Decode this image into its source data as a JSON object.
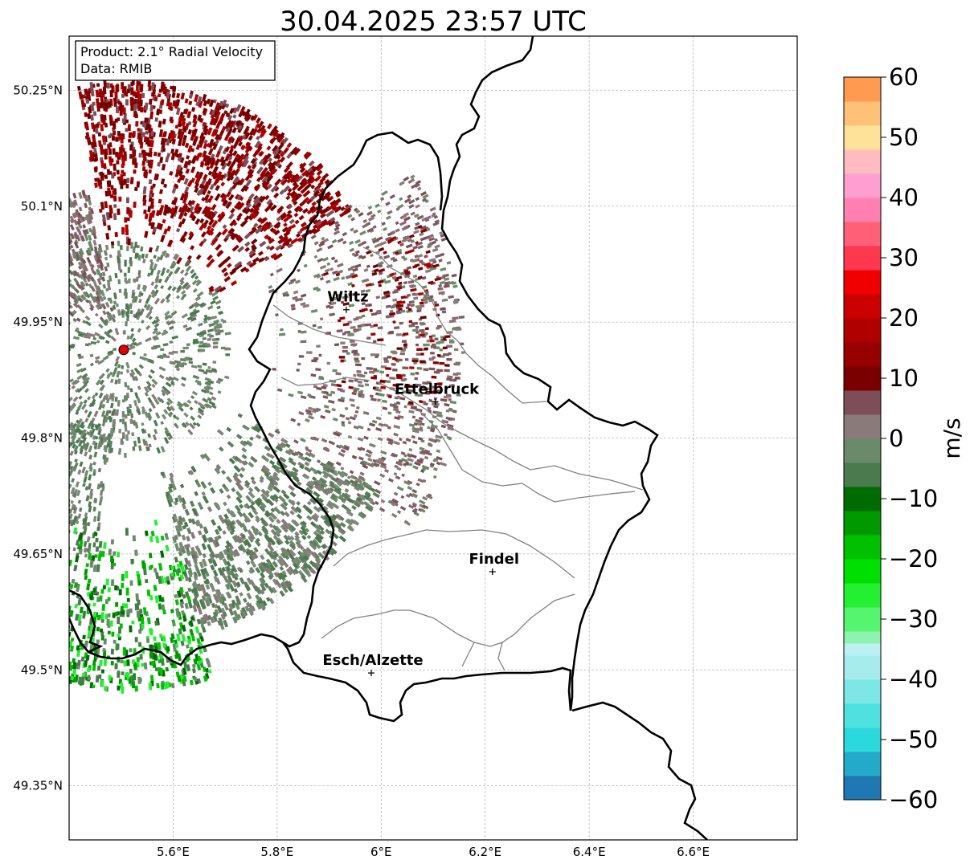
{
  "title": "30.04.2025 23:57 UTC",
  "info_box": {
    "product": "Product: 2.1° Radial Velocity",
    "data": "Data: RMIB"
  },
  "map": {
    "lon_range": [
      5.4,
      6.8
    ],
    "lat_range": [
      49.28,
      50.32
    ],
    "x_ticks": [
      {
        "lon": 5.6,
        "label": "5.6°E"
      },
      {
        "lon": 5.8,
        "label": "5.8°E"
      },
      {
        "lon": 6.0,
        "label": "6°E"
      },
      {
        "lon": 6.2,
        "label": "6.2°E"
      },
      {
        "lon": 6.4,
        "label": "6.4°E"
      },
      {
        "lon": 6.6,
        "label": "6.6°E"
      }
    ],
    "y_ticks": [
      {
        "lat": 50.25,
        "label": "50.25°N"
      },
      {
        "lat": 50.1,
        "label": "50.1°N"
      },
      {
        "lat": 49.95,
        "label": "49.95°N"
      },
      {
        "lat": 49.8,
        "label": "49.8°N"
      },
      {
        "lat": 49.65,
        "label": "49.65°N"
      },
      {
        "lat": 49.5,
        "label": "49.5°N"
      },
      {
        "lat": 49.35,
        "label": "49.35°N"
      }
    ],
    "grid": true,
    "radar_site": {
      "lon": 5.505,
      "lat": 49.914,
      "color": "#e00000"
    },
    "cities": [
      {
        "name": "Wiltz",
        "lon": 5.933,
        "lat": 49.966
      },
      {
        "name": "Ettelbruck",
        "lon": 6.104,
        "lat": 49.847
      },
      {
        "name": "Findel",
        "lon": 6.214,
        "lat": 49.627
      },
      {
        "name": "Esch/Alzette",
        "lon": 5.981,
        "lat": 49.496
      }
    ],
    "border_color": "#000000",
    "canton_color": "#808080"
  },
  "colorbar": {
    "label": "m/s",
    "min": -60,
    "max": 60,
    "ticks": [
      {
        "value": 60,
        "label": "60"
      },
      {
        "value": 50,
        "label": "50"
      },
      {
        "value": 40,
        "label": "40"
      },
      {
        "value": 30,
        "label": "30"
      },
      {
        "value": 20,
        "label": "20"
      },
      {
        "value": 10,
        "label": "10"
      },
      {
        "value": 0,
        "label": "0"
      },
      {
        "value": -10,
        "label": "−10"
      },
      {
        "value": -20,
        "label": "−20"
      },
      {
        "value": -30,
        "label": "−30"
      },
      {
        "value": -40,
        "label": "−40"
      },
      {
        "value": -50,
        "label": "−50"
      },
      {
        "value": -60,
        "label": "−60"
      }
    ],
    "stops": [
      {
        "from": -60,
        "to": -56,
        "color": "#1f77b4"
      },
      {
        "from": -56,
        "to": -52,
        "color": "#23a9c9"
      },
      {
        "from": -52,
        "to": -48,
        "color": "#2bd8dc"
      },
      {
        "from": -48,
        "to": -44,
        "color": "#4fe0e0"
      },
      {
        "from": -44,
        "to": -40,
        "color": "#7de6e6"
      },
      {
        "from": -40,
        "to": -36,
        "color": "#a6ecec"
      },
      {
        "from": -36,
        "to": -34,
        "color": "#bdf0f0"
      },
      {
        "from": -34,
        "to": -32,
        "color": "#8ef2b0"
      },
      {
        "from": -32,
        "to": -28,
        "color": "#55f570"
      },
      {
        "from": -28,
        "to": -24,
        "color": "#22f030"
      },
      {
        "from": -24,
        "to": -20,
        "color": "#00e000"
      },
      {
        "from": -20,
        "to": -16,
        "color": "#00c000"
      },
      {
        "from": -16,
        "to": -12,
        "color": "#009a00"
      },
      {
        "from": -12,
        "to": -8,
        "color": "#006b00"
      },
      {
        "from": -8,
        "to": -4,
        "color": "#4a7a4e"
      },
      {
        "from": -4,
        "to": 0,
        "color": "#6a8a6a"
      },
      {
        "from": 0,
        "to": 4,
        "color": "#8a7a7a"
      },
      {
        "from": 4,
        "to": 8,
        "color": "#7e4e58"
      },
      {
        "from": 8,
        "to": 12,
        "color": "#7a0000"
      },
      {
        "from": 12,
        "to": 16,
        "color": "#960000"
      },
      {
        "from": 16,
        "to": 20,
        "color": "#b00000"
      },
      {
        "from": 20,
        "to": 24,
        "color": "#cc0000"
      },
      {
        "from": 24,
        "to": 28,
        "color": "#f00000"
      },
      {
        "from": 28,
        "to": 32,
        "color": "#ff3850"
      },
      {
        "from": 32,
        "to": 36,
        "color": "#ff6078"
      },
      {
        "from": 36,
        "to": 40,
        "color": "#ff80b0"
      },
      {
        "from": 40,
        "to": 44,
        "color": "#ff9ed0"
      },
      {
        "from": 44,
        "to": 48,
        "color": "#ffbcc0"
      },
      {
        "from": 48,
        "to": 52,
        "color": "#ffe29a"
      },
      {
        "from": 52,
        "to": 56,
        "color": "#ffc078"
      },
      {
        "from": 56,
        "to": 60,
        "color": "#ff9a50"
      }
    ]
  }
}
